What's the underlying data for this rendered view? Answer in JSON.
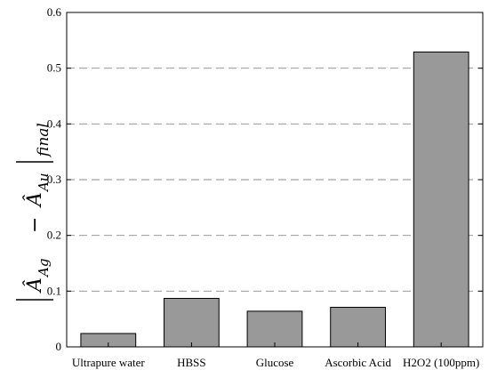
{
  "chart_data": {
    "type": "bar",
    "categories": [
      "Ultrapure water",
      "HBSS",
      "Glucose",
      "Ascorbic Acid",
      "H2O2 (100ppm)"
    ],
    "values": [
      0.024,
      0.087,
      0.064,
      0.071,
      0.529
    ],
    "ylim": [
      0,
      0.6
    ],
    "yticks": [
      "0",
      "0.1",
      "0.2",
      "0.3",
      "0.4",
      "0.5",
      "0.6"
    ],
    "ylabel": {
      "term1": "Â",
      "term1_sub": "Ag",
      "minus": "−",
      "term2": "Â",
      "term2_sub": "Au",
      "suffix": "final"
    },
    "grid": "y-dashed",
    "bar_color": "#999999",
    "bar_edge_color": "#000000"
  }
}
